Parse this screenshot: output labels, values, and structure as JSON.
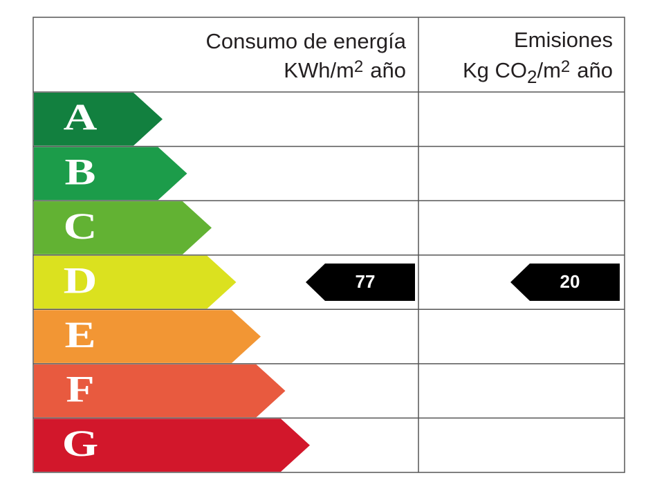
{
  "header": {
    "energy": {
      "title": "Consumo de energía",
      "unit": "KWh/m",
      "unit_exp": "2",
      "unit_rest": "año"
    },
    "emissions": {
      "title": "Emisiones",
      "unit_a": "Kg CO",
      "unit_sub": "2",
      "unit_b": "/m",
      "unit_exp": "2",
      "unit_rest": "año"
    }
  },
  "classes": [
    {
      "letter": "A",
      "color": "#12803f"
    },
    {
      "letter": "B",
      "color": "#1c9c4a"
    },
    {
      "letter": "C",
      "color": "#62b233"
    },
    {
      "letter": "D",
      "color": "#dbe11f"
    },
    {
      "letter": "E",
      "color": "#f29634"
    },
    {
      "letter": "F",
      "color": "#e85a3f"
    },
    {
      "letter": "G",
      "color": "#d2172b"
    }
  ],
  "energy": {
    "value": 77,
    "class": "D"
  },
  "emissions": {
    "value": 20,
    "class": "D"
  }
}
